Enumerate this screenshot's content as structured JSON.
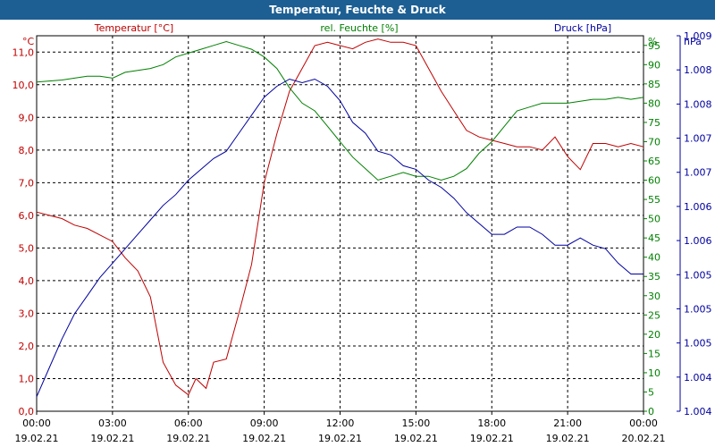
{
  "title": "Temperatur, Feuchte & Druck",
  "colors": {
    "temperature": "#c00000",
    "humidity": "#008000",
    "pressure": "#0000a0",
    "title_bar": "#1d5f93",
    "grid": "#000000"
  },
  "chart_data": {
    "type": "line",
    "title": "Temperatur, Feuchte & Druck",
    "grid": true,
    "x_tick_labels": [
      [
        "00:00",
        "19.02.21"
      ],
      [
        "03:00",
        "19.02.21"
      ],
      [
        "06:00",
        "19.02.21"
      ],
      [
        "09:00",
        "19.02.21"
      ],
      [
        "12:00",
        "19.02.21"
      ],
      [
        "15:00",
        "19.02.21"
      ],
      [
        "18:00",
        "19.02.21"
      ],
      [
        "21:00",
        "19.02.21"
      ],
      [
        "00:00",
        "20.02.21"
      ]
    ],
    "x_range_hours": [
      0,
      24
    ],
    "axes": {
      "temperature": {
        "unit": "°C",
        "label": "Temperatur [°C]",
        "side": "left",
        "range": [
          0,
          11.5
        ],
        "ticks": [
          "0,0",
          "1,0",
          "2,0",
          "3,0",
          "4,0",
          "5,0",
          "6,0",
          "7,0",
          "8,0",
          "9,0",
          "10,0",
          "11,0"
        ]
      },
      "humidity": {
        "unit": "%",
        "label": "rel. Feuchte [%]",
        "side": "right",
        "range": [
          0,
          97.5
        ],
        "ticks": [
          "0",
          "5",
          "10",
          "15",
          "20",
          "25",
          "30",
          "35",
          "40",
          "45",
          "50",
          "55",
          "60",
          "65",
          "70",
          "75",
          "80",
          "85",
          "90",
          "95"
        ]
      },
      "pressure": {
        "unit": "hPa",
        "label": "Druck [hPa]",
        "side": "right-outer",
        "range": [
          1004,
          1009.2
        ],
        "ticks": [
          "1.004",
          "1.004",
          "1.005",
          "1.005",
          "1.005",
          "1.006",
          "1.006",
          "1.007",
          "1.007",
          "1.008",
          "1.008",
          "1.009"
        ]
      }
    },
    "series": [
      {
        "name": "Temperatur [°C]",
        "axis": "temperature",
        "color_key": "temperature",
        "x": [
          0,
          0.5,
          1,
          1.5,
          2,
          2.5,
          3,
          3.5,
          4,
          4.5,
          5,
          5.5,
          6,
          6.3,
          6.7,
          7,
          7.5,
          8,
          8.5,
          9,
          9.5,
          10,
          10.5,
          11,
          11.5,
          12,
          12.5,
          13,
          13.5,
          14,
          14.5,
          15,
          15.5,
          16,
          16.5,
          17,
          17.5,
          18,
          18.5,
          19,
          19.5,
          20,
          20.5,
          21,
          21.5,
          22,
          22.5,
          23,
          23.5,
          24
        ],
        "values": [
          6.1,
          6.0,
          5.9,
          5.7,
          5.6,
          5.4,
          5.2,
          4.7,
          4.3,
          3.5,
          1.5,
          0.8,
          0.5,
          1.0,
          0.7,
          1.5,
          1.6,
          3.0,
          4.5,
          7.0,
          8.5,
          9.8,
          10.5,
          11.2,
          11.3,
          11.2,
          11.1,
          11.3,
          11.4,
          11.3,
          11.3,
          11.2,
          10.5,
          9.8,
          9.2,
          8.6,
          8.4,
          8.3,
          8.2,
          8.1,
          8.1,
          8.0,
          8.4,
          7.8,
          7.4,
          8.2,
          8.2,
          8.1,
          8.2,
          8.1
        ]
      },
      {
        "name": "rel. Feuchte [%]",
        "axis": "humidity",
        "color_key": "humidity",
        "x": [
          0,
          1,
          1.5,
          2,
          2.5,
          3,
          3.5,
          4,
          4.5,
          5,
          5.5,
          6,
          6.5,
          7,
          7.5,
          8,
          8.5,
          9,
          9.5,
          10,
          10.5,
          11,
          11.5,
          12,
          12.5,
          13,
          13.5,
          14,
          14.5,
          15,
          15.5,
          16,
          16.5,
          17,
          17.5,
          18,
          18.5,
          19,
          19.5,
          20,
          20.5,
          21,
          21.5,
          22,
          22.5,
          23,
          23.5,
          24
        ],
        "values": [
          85.5,
          86,
          86.5,
          87,
          87,
          86.5,
          88,
          88.5,
          89,
          90,
          92,
          93,
          94,
          95,
          96,
          95,
          94,
          92,
          89,
          84,
          80,
          78,
          74,
          70,
          66,
          63,
          60,
          61,
          62,
          61,
          61,
          60,
          61,
          63,
          67,
          70,
          74,
          78,
          79,
          80,
          80,
          80,
          80.5,
          81,
          81,
          81.5,
          81,
          81.5
        ]
      },
      {
        "name": "Druck [hPa]",
        "axis": "pressure",
        "color_key": "pressure",
        "x": [
          0,
          0.5,
          1,
          1.5,
          2,
          2.5,
          3,
          3.5,
          4,
          4.5,
          5,
          5.5,
          6,
          6.5,
          7,
          7.5,
          8,
          8.5,
          9,
          9.5,
          10,
          10.5,
          11,
          11.5,
          12,
          12.5,
          13,
          13.5,
          14,
          14.5,
          15,
          15.5,
          16,
          16.5,
          17,
          17.5,
          18,
          18.5,
          19,
          19.5,
          20,
          20.5,
          21,
          21.5,
          22,
          22.5,
          23,
          23.5,
          24
        ],
        "values": [
          1004.2,
          1004.6,
          1005.0,
          1005.35,
          1005.6,
          1005.85,
          1006.05,
          1006.25,
          1006.45,
          1006.65,
          1006.85,
          1007.0,
          1007.2,
          1007.35,
          1007.5,
          1007.6,
          1007.85,
          1008.1,
          1008.35,
          1008.5,
          1008.6,
          1008.55,
          1008.6,
          1008.5,
          1008.3,
          1008.0,
          1007.85,
          1007.6,
          1007.55,
          1007.4,
          1007.35,
          1007.2,
          1007.1,
          1006.95,
          1006.75,
          1006.6,
          1006.45,
          1006.45,
          1006.55,
          1006.55,
          1006.45,
          1006.3,
          1006.3,
          1006.4,
          1006.3,
          1006.25,
          1006.05,
          1005.9,
          1005.9
        ]
      }
    ]
  }
}
